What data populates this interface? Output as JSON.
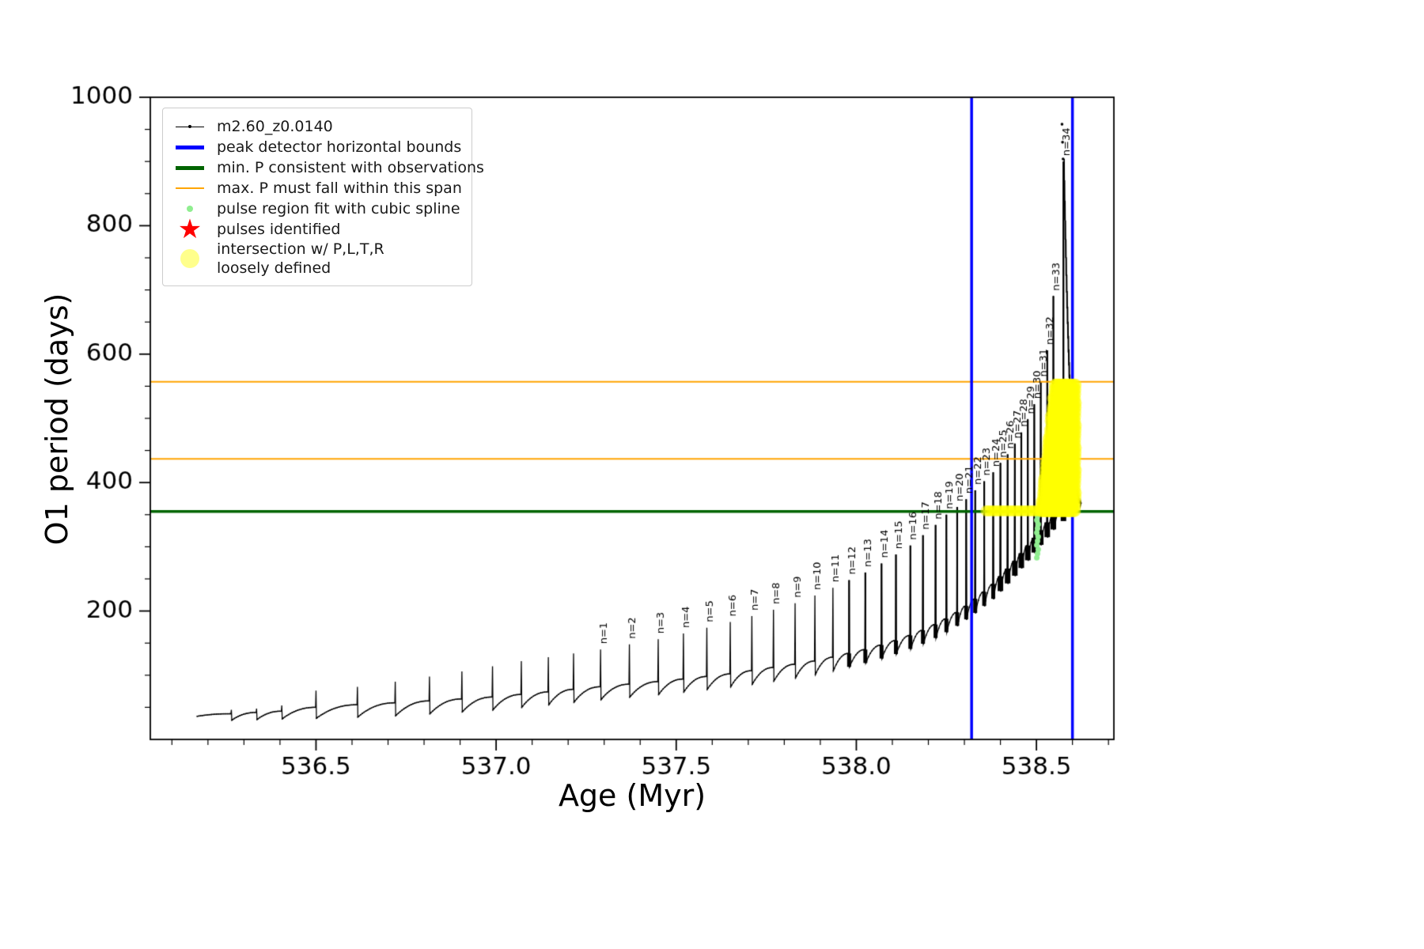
{
  "axes": {
    "xlabel": "Age (Myr)",
    "ylabel": "O1 period (days)",
    "xlim": [
      536.04,
      538.715
    ],
    "ylim": [
      0,
      1000
    ],
    "x_major_ticks": [
      536.5,
      537.0,
      537.5,
      538.0,
      538.5
    ],
    "x_tick_labels": [
      "536.5",
      "537.0",
      "537.5",
      "538.0",
      "538.5"
    ],
    "x_minor_step": 0.1,
    "y_major_ticks": [
      200,
      400,
      600,
      800,
      1000
    ],
    "y_tick_labels": [
      "200",
      "400",
      "600",
      "800",
      "1000"
    ],
    "y_minor_step": 50
  },
  "legend": {
    "items": [
      {
        "label": "m2.60_z0.0140",
        "swatch": "line-dot",
        "color": "#000000"
      },
      {
        "label": "peak detector horizontal bounds",
        "swatch": "thick-line",
        "color": "#0000ff"
      },
      {
        "label": "min. P consistent with observations",
        "swatch": "thick-line",
        "color": "#006400"
      },
      {
        "label": "max. P must fall within this span",
        "swatch": "line",
        "color": "#ffa500"
      },
      {
        "label": "pulse region fit with cubic spline",
        "swatch": "dot",
        "color": "#90ee90"
      },
      {
        "label": "pulses identified",
        "swatch": "star",
        "color": "#ff0000"
      },
      {
        "label": "intersection w/ P,L,T,R",
        "label2": "loosely defined",
        "swatch": "big-dot",
        "color": "#ffff00"
      }
    ]
  },
  "chart_data": {
    "type": "line",
    "title": "",
    "xlabel": "Age (Myr)",
    "ylabel": "O1 period (days)",
    "xlim": [
      536.04,
      538.715
    ],
    "ylim": [
      0,
      1000
    ],
    "series_name": "m2.60_z0.0140",
    "series_color": "#000000",
    "peak_label_prefix": "n=",
    "start": {
      "x": 536.17,
      "value": 36
    },
    "pulses": [
      {
        "n": null,
        "x": 536.265,
        "base": 40,
        "peak": 46,
        "min": 30
      },
      {
        "n": null,
        "x": 536.335,
        "base": 42,
        "peak": 48,
        "min": 31
      },
      {
        "n": null,
        "x": 536.405,
        "base": 44,
        "peak": 53,
        "min": 32
      },
      {
        "n": null,
        "x": 536.5,
        "base": 50,
        "peak": 76,
        "min": 33
      },
      {
        "n": null,
        "x": 536.615,
        "base": 54,
        "peak": 82,
        "min": 35
      },
      {
        "n": null,
        "x": 536.72,
        "base": 57,
        "peak": 90,
        "min": 37
      },
      {
        "n": null,
        "x": 536.815,
        "base": 60,
        "peak": 98,
        "min": 40
      },
      {
        "n": null,
        "x": 536.905,
        "base": 63,
        "peak": 106,
        "min": 43
      },
      {
        "n": null,
        "x": 536.99,
        "base": 66,
        "peak": 114,
        "min": 46
      },
      {
        "n": null,
        "x": 537.07,
        "base": 70,
        "peak": 122,
        "min": 50
      },
      {
        "n": null,
        "x": 537.145,
        "base": 74,
        "peak": 128,
        "min": 54
      },
      {
        "n": null,
        "x": 537.215,
        "base": 78,
        "peak": 134,
        "min": 58
      },
      {
        "n": 1,
        "x": 537.29,
        "base": 82,
        "peak": 140,
        "min": 62
      },
      {
        "n": 2,
        "x": 537.37,
        "base": 86,
        "peak": 148,
        "min": 66
      },
      {
        "n": 3,
        "x": 537.45,
        "base": 90,
        "peak": 156,
        "min": 70
      },
      {
        "n": 4,
        "x": 537.52,
        "base": 94,
        "peak": 165,
        "min": 74
      },
      {
        "n": 5,
        "x": 537.585,
        "base": 98,
        "peak": 174,
        "min": 78
      },
      {
        "n": 6,
        "x": 537.65,
        "base": 102,
        "peak": 183,
        "min": 82
      },
      {
        "n": 7,
        "x": 537.71,
        "base": 107,
        "peak": 192,
        "min": 86
      },
      {
        "n": 8,
        "x": 537.77,
        "base": 112,
        "peak": 202,
        "min": 91
      },
      {
        "n": 9,
        "x": 537.83,
        "base": 117,
        "peak": 212,
        "min": 96
      },
      {
        "n": 10,
        "x": 537.885,
        "base": 122,
        "peak": 224,
        "min": 101
      },
      {
        "n": 11,
        "x": 537.935,
        "base": 128,
        "peak": 236,
        "min": 107
      },
      {
        "n": 12,
        "x": 537.98,
        "base": 134,
        "peak": 248,
        "min": 113
      },
      {
        "n": 13,
        "x": 538.025,
        "base": 140,
        "peak": 260,
        "min": 119
      },
      {
        "n": 14,
        "x": 538.07,
        "base": 147,
        "peak": 274,
        "min": 126
      },
      {
        "n": 15,
        "x": 538.11,
        "base": 154,
        "peak": 288,
        "min": 133
      },
      {
        "n": 16,
        "x": 538.15,
        "base": 162,
        "peak": 302,
        "min": 141
      },
      {
        "n": 17,
        "x": 538.185,
        "base": 170,
        "peak": 318,
        "min": 149
      },
      {
        "n": 18,
        "x": 538.22,
        "base": 179,
        "peak": 334,
        "min": 158
      },
      {
        "n": 19,
        "x": 538.25,
        "base": 188,
        "peak": 350,
        "min": 167
      },
      {
        "n": 20,
        "x": 538.28,
        "base": 198,
        "peak": 362,
        "min": 177
      },
      {
        "n": 21,
        "x": 538.305,
        "base": 208,
        "peak": 374,
        "min": 187
      },
      {
        "n": 22,
        "x": 538.33,
        "base": 219,
        "peak": 388,
        "min": 197
      },
      {
        "n": 23,
        "x": 538.355,
        "base": 230,
        "peak": 402,
        "min": 208
      },
      {
        "n": 24,
        "x": 538.38,
        "base": 242,
        "peak": 416,
        "min": 219
      },
      {
        "n": 25,
        "x": 538.4,
        "base": 254,
        "peak": 430,
        "min": 231
      },
      {
        "n": 26,
        "x": 538.42,
        "base": 266,
        "peak": 444,
        "min": 243
      },
      {
        "n": 27,
        "x": 538.44,
        "base": 278,
        "peak": 460,
        "min": 255
      },
      {
        "n": 28,
        "x": 538.458,
        "base": 290,
        "peak": 478,
        "min": 267
      },
      {
        "n": 29,
        "x": 538.476,
        "base": 302,
        "peak": 498,
        "min": 279
      },
      {
        "n": 30,
        "x": 538.494,
        "base": 314,
        "peak": 522,
        "min": 291
      },
      {
        "n": 31,
        "x": 538.512,
        "base": 326,
        "peak": 556,
        "min": 303
      },
      {
        "n": 32,
        "x": 538.53,
        "base": 338,
        "peak": 606,
        "min": 315
      },
      {
        "n": 33,
        "x": 538.547,
        "base": 350,
        "peak": 690,
        "min": 327
      },
      {
        "n": 34,
        "x": 538.575,
        "base": 362,
        "peak": 900,
        "min": 340
      }
    ],
    "tail": {
      "x_start": 538.577,
      "value_start": 880,
      "x_end": 538.625,
      "value_end": 368,
      "oscillation": 24
    },
    "extra_points": [
      [
        538.571,
        958
      ],
      [
        538.5725,
        930
      ],
      [
        538.574,
        904
      ]
    ],
    "vlines": {
      "color": "#0000ff",
      "x": [
        538.32,
        538.6
      ],
      "label": "peak detector horizontal bounds",
      "linewidth": 3.5
    },
    "hline_green": {
      "color": "#006400",
      "y": 355,
      "label": "min. P consistent with observations",
      "linewidth": 3.5
    },
    "hlines_orange": {
      "color": "#ffa500",
      "y": [
        437,
        557
      ],
      "label": "max. P must fall within this span",
      "linewidth": 2
    },
    "spline_dots": {
      "color": "#90ee90",
      "x_center": 538.503,
      "x_jitter": 0.004,
      "y_range": [
        283,
        358
      ],
      "y_step": 6.5
    },
    "yellow_region": {
      "color_rgba": "rgba(255,255,0,0.5)",
      "x_range": [
        538.515,
        538.608
      ],
      "y_bottom": 352,
      "y_top": 558,
      "left_taper": {
        "x0": 538.515,
        "x1": 538.552,
        "top0": 372,
        "top1": 558
      },
      "fringe": {
        "x_range": [
          538.36,
          538.512
        ],
        "y": 356
      }
    }
  }
}
